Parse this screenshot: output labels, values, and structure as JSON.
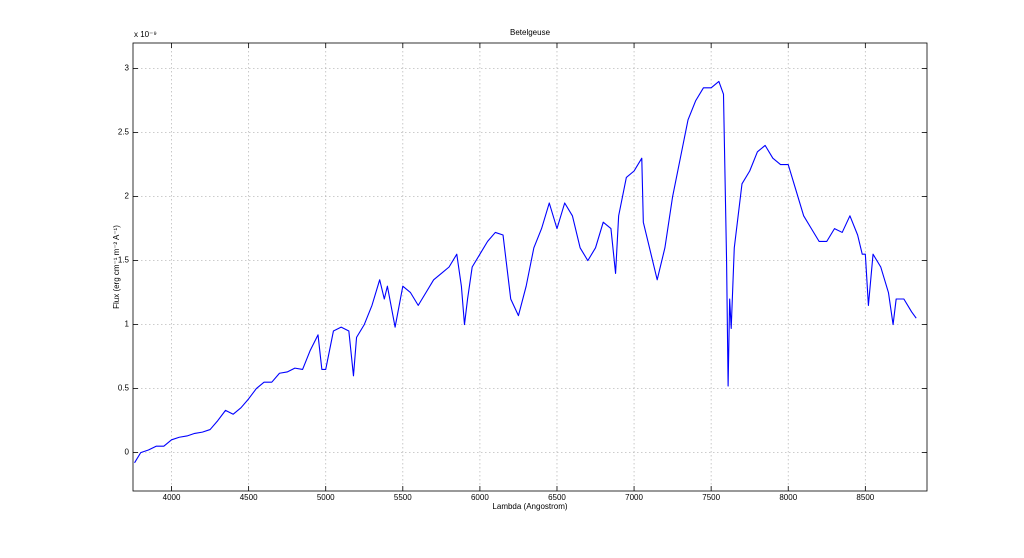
{
  "chart_data": {
    "type": "line",
    "title": "Betelgeuse",
    "xlabel": "Lambda (Angostrom)",
    "ylabel": "Flux (erg cm⁻¹ m⁻² A⁻¹)",
    "y_exponent": "x 10⁻⁹",
    "xlim": [
      3750,
      8900
    ],
    "xticks": [
      4000,
      4500,
      5000,
      5500,
      6000,
      6500,
      7000,
      7500,
      8000,
      8500
    ],
    "ylim": [
      -0.3,
      3.2
    ],
    "yticks": [
      0,
      0.5,
      1,
      1.5,
      2,
      2.5,
      3
    ],
    "grid": true,
    "series": [
      {
        "name": "Betelgeuse",
        "color": "#0000ff",
        "x": [
          3760,
          3800,
          3850,
          3900,
          3950,
          4000,
          4050,
          4100,
          4150,
          4200,
          4250,
          4300,
          4350,
          4400,
          4450,
          4500,
          4550,
          4600,
          4650,
          4700,
          4750,
          4800,
          4850,
          4900,
          4950,
          4975,
          5000,
          5050,
          5100,
          5150,
          5180,
          5200,
          5250,
          5300,
          5350,
          5380,
          5400,
          5450,
          5500,
          5550,
          5600,
          5650,
          5700,
          5750,
          5800,
          5850,
          5880,
          5900,
          5920,
          5950,
          6000,
          6050,
          6100,
          6150,
          6200,
          6250,
          6300,
          6350,
          6400,
          6450,
          6500,
          6550,
          6600,
          6650,
          6700,
          6750,
          6800,
          6850,
          6880,
          6900,
          6950,
          7000,
          7050,
          7060,
          7100,
          7150,
          7200,
          7250,
          7300,
          7350,
          7400,
          7450,
          7500,
          7550,
          7580,
          7600,
          7610,
          7620,
          7630,
          7650,
          7700,
          7750,
          7800,
          7850,
          7900,
          7950,
          8000,
          8050,
          8100,
          8150,
          8200,
          8250,
          8300,
          8350,
          8400,
          8450,
          8480,
          8500,
          8520,
          8550,
          8600,
          8650,
          8680,
          8700,
          8750,
          8800,
          8830
        ],
        "values": [
          -0.08,
          0.0,
          0.02,
          0.05,
          0.05,
          0.1,
          0.12,
          0.13,
          0.15,
          0.16,
          0.18,
          0.25,
          0.33,
          0.3,
          0.35,
          0.42,
          0.5,
          0.55,
          0.55,
          0.62,
          0.63,
          0.66,
          0.65,
          0.8,
          0.92,
          0.65,
          0.65,
          0.95,
          0.98,
          0.95,
          0.6,
          0.9,
          1.0,
          1.15,
          1.35,
          1.2,
          1.3,
          0.98,
          1.3,
          1.25,
          1.15,
          1.25,
          1.35,
          1.4,
          1.45,
          1.55,
          1.3,
          1.0,
          1.2,
          1.45,
          1.55,
          1.65,
          1.72,
          1.7,
          1.2,
          1.07,
          1.3,
          1.6,
          1.75,
          1.95,
          1.75,
          1.95,
          1.85,
          1.6,
          1.5,
          1.6,
          1.8,
          1.75,
          1.4,
          1.85,
          2.15,
          2.2,
          2.3,
          1.8,
          1.6,
          1.35,
          1.6,
          2.0,
          2.3,
          2.6,
          2.75,
          2.85,
          2.85,
          2.9,
          2.8,
          1.5,
          0.52,
          1.2,
          0.97,
          1.6,
          2.1,
          2.2,
          2.35,
          2.4,
          2.3,
          2.25,
          2.25,
          2.05,
          1.85,
          1.75,
          1.65,
          1.65,
          1.75,
          1.72,
          1.85,
          1.7,
          1.55,
          1.55,
          1.15,
          1.55,
          1.45,
          1.25,
          1.0,
          1.2,
          1.2,
          1.1,
          1.05
        ]
      }
    ]
  }
}
